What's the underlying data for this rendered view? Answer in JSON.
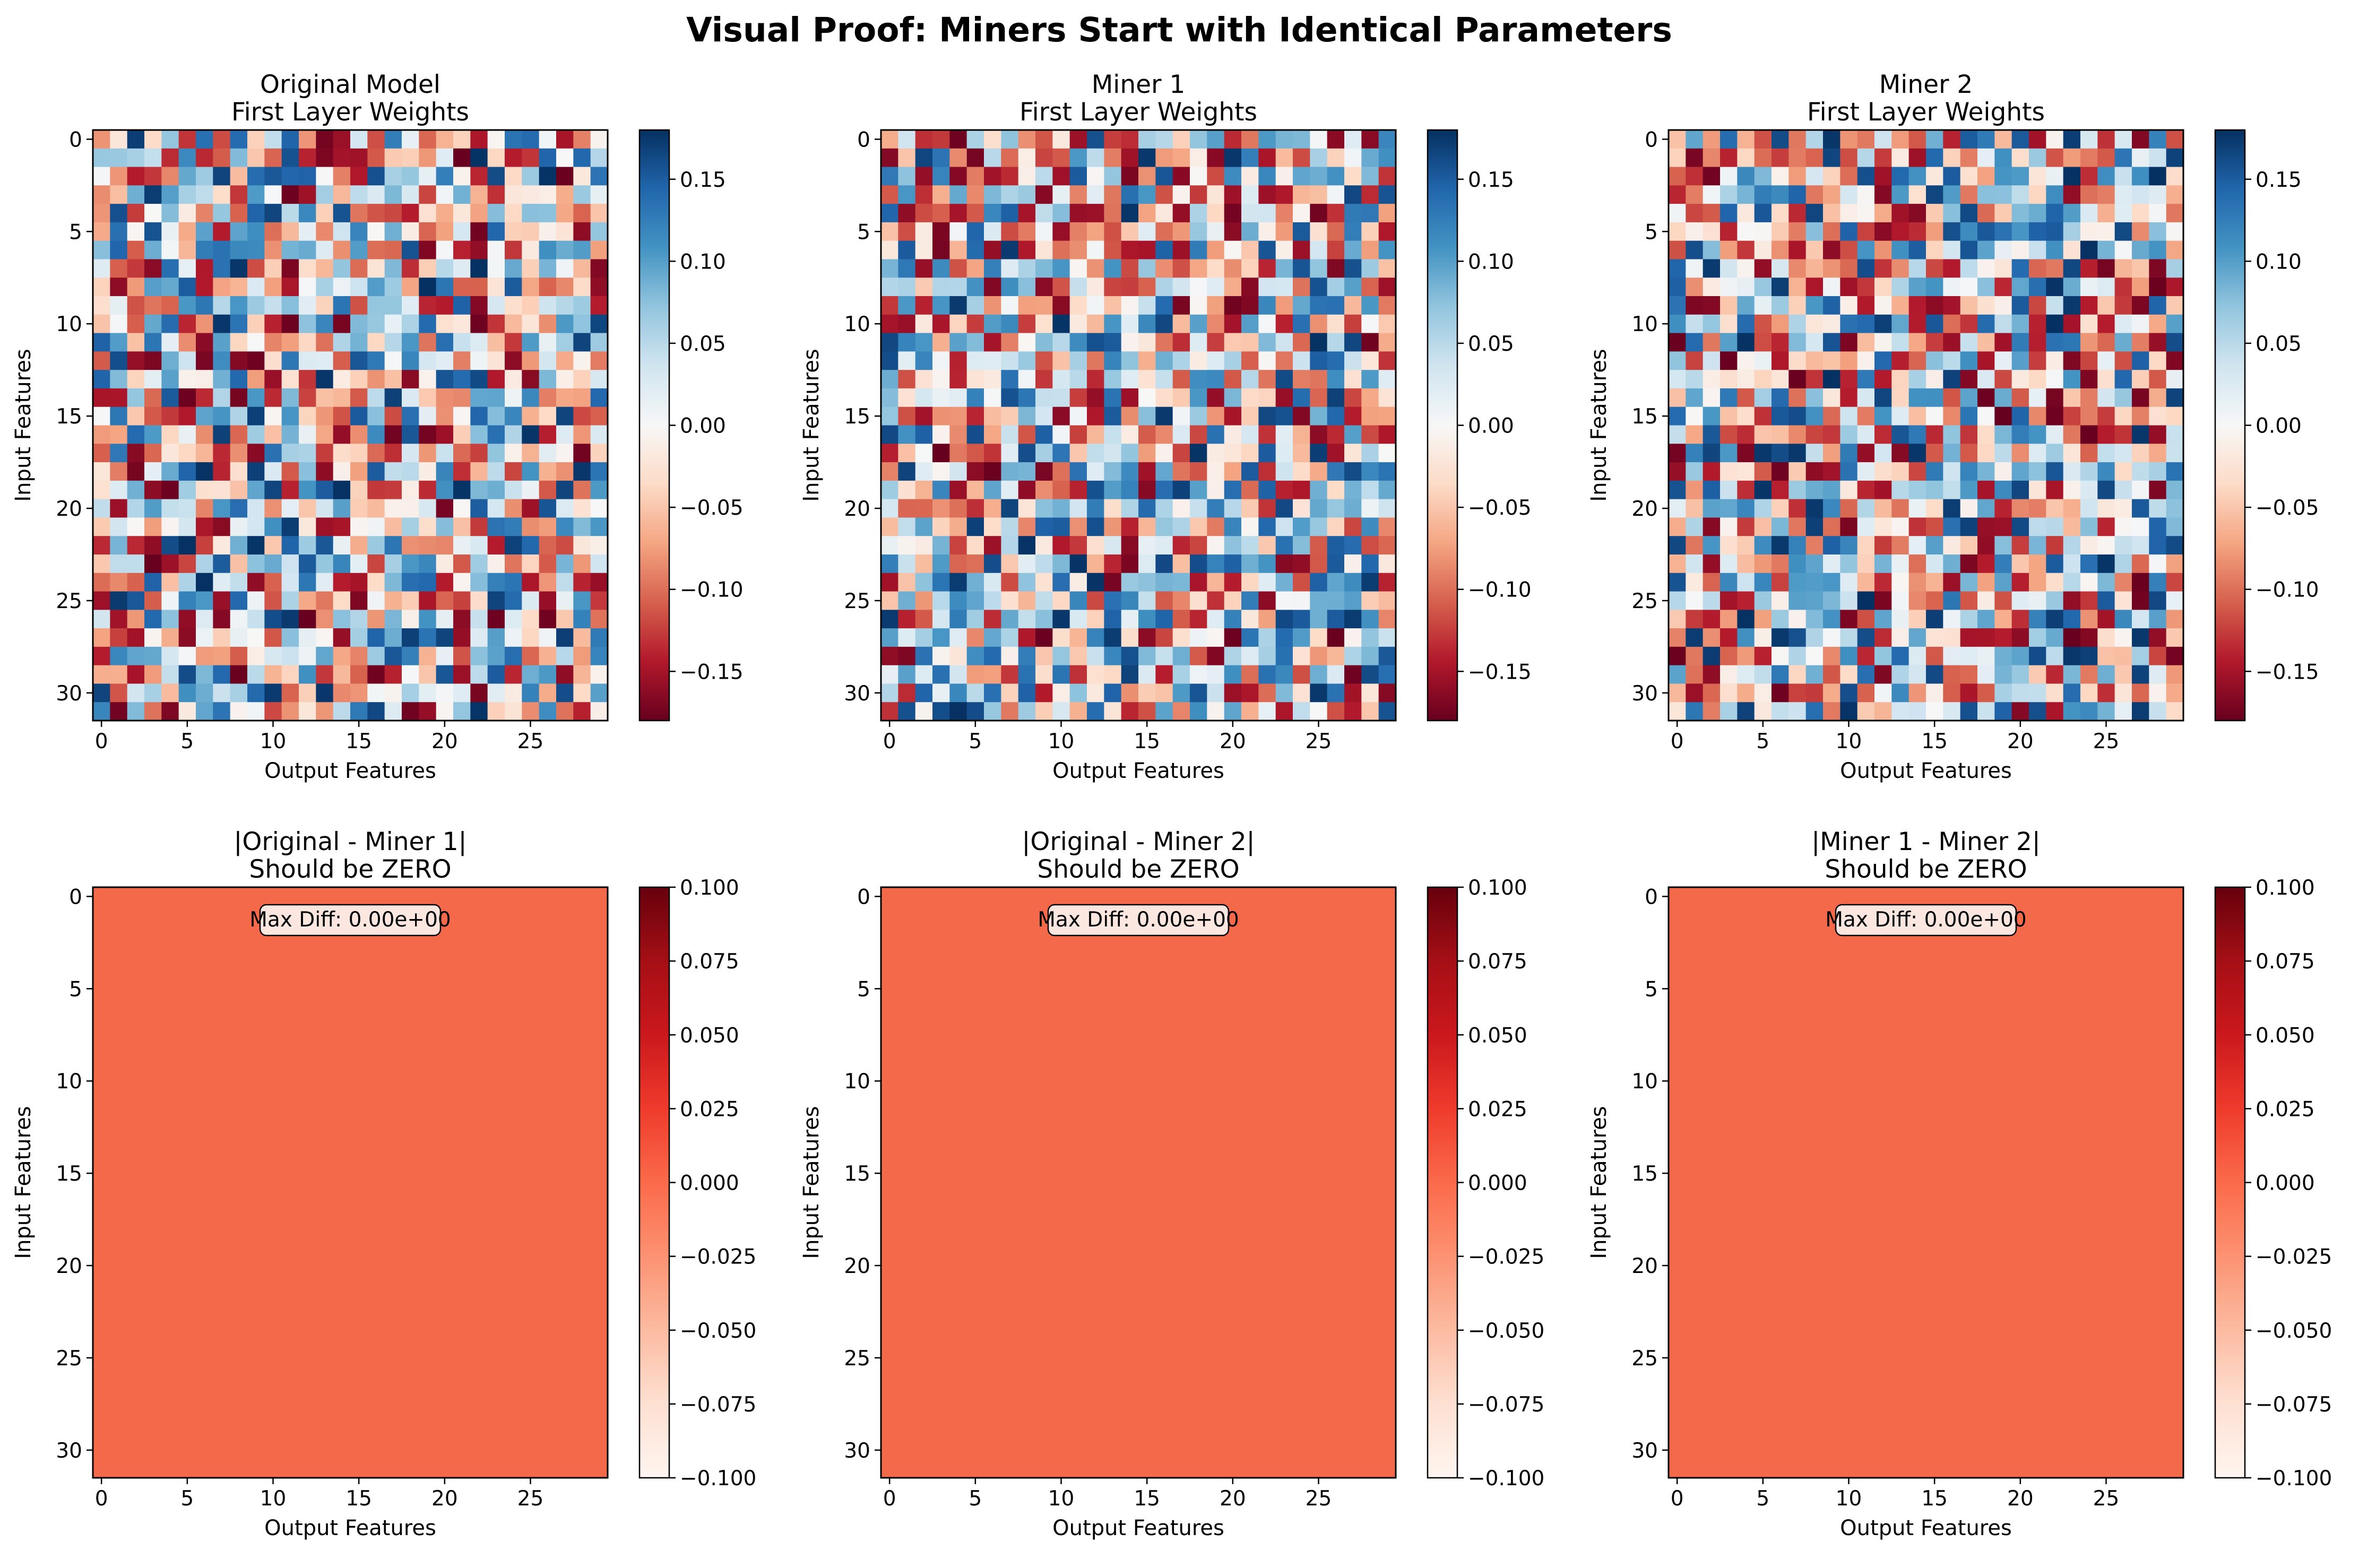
{
  "figure": {
    "title": "Visual Proof: Miners Start with Identical Parameters"
  },
  "colormaps": {
    "RdBu": [
      "#67001f",
      "#b2182b",
      "#d6604d",
      "#f4a582",
      "#fddbc7",
      "#f7f7f7",
      "#d1e5f0",
      "#92c5de",
      "#4393c3",
      "#2166ac",
      "#053061"
    ],
    "Reds": [
      "#fff5f0",
      "#fee0d2",
      "#fcbba1",
      "#fc9272",
      "#fb6a4a",
      "#ef3b2c",
      "#cb181d",
      "#a50f15",
      "#67000d"
    ]
  },
  "chart_data": [
    {
      "type": "heatmap",
      "title_line1": "Original Model",
      "title_line2": "First Layer Weights",
      "xlabel": "Output Features",
      "ylabel": "Input Features",
      "rows": 32,
      "cols": 30,
      "value_range": [
        -0.18,
        0.18
      ],
      "seed": 101,
      "colormap": "RdBu",
      "xticks": [
        0,
        5,
        10,
        15,
        20,
        25
      ],
      "yticks": [
        0,
        5,
        10,
        15,
        20,
        25,
        30
      ],
      "colorbar_ticks": [
        0.15,
        0.1,
        0.05,
        0.0,
        -0.05,
        -0.1,
        -0.15
      ],
      "colorbar_tick_labels": [
        "0.15",
        "0.10",
        "0.05",
        "0.00",
        "−0.05",
        "−0.10",
        "−0.15"
      ],
      "colorbar_range": [
        -0.18,
        0.18
      ]
    },
    {
      "type": "heatmap",
      "title_line1": "Miner 1",
      "title_line2": "First Layer Weights",
      "xlabel": "Output Features",
      "ylabel": "Input Features",
      "rows": 32,
      "cols": 30,
      "value_range": [
        -0.18,
        0.18
      ],
      "seed": 202,
      "colormap": "RdBu",
      "xticks": [
        0,
        5,
        10,
        15,
        20,
        25
      ],
      "yticks": [
        0,
        5,
        10,
        15,
        20,
        25,
        30
      ],
      "colorbar_ticks": [
        0.15,
        0.1,
        0.05,
        0.0,
        -0.05,
        -0.1,
        -0.15
      ],
      "colorbar_tick_labels": [
        "0.15",
        "0.10",
        "0.05",
        "0.00",
        "−0.05",
        "−0.10",
        "−0.15"
      ],
      "colorbar_range": [
        -0.18,
        0.18
      ]
    },
    {
      "type": "heatmap",
      "title_line1": "Miner 2",
      "title_line2": "First Layer Weights",
      "xlabel": "Output Features",
      "ylabel": "Input Features",
      "rows": 32,
      "cols": 30,
      "value_range": [
        -0.18,
        0.18
      ],
      "seed": 303,
      "colormap": "RdBu",
      "xticks": [
        0,
        5,
        10,
        15,
        20,
        25
      ],
      "yticks": [
        0,
        5,
        10,
        15,
        20,
        25,
        30
      ],
      "colorbar_ticks": [
        0.15,
        0.1,
        0.05,
        0.0,
        -0.05,
        -0.1,
        -0.15
      ],
      "colorbar_tick_labels": [
        "0.15",
        "0.10",
        "0.05",
        "0.00",
        "−0.05",
        "−0.10",
        "−0.15"
      ],
      "colorbar_range": [
        -0.18,
        0.18
      ]
    },
    {
      "type": "heatmap",
      "title_line1": "|Original - Miner 1|",
      "title_line2": "Should be ZERO",
      "xlabel": "Output Features",
      "ylabel": "Input Features",
      "rows": 32,
      "cols": 30,
      "constant_value": 0.0,
      "fill_color": "#f4694a",
      "colormap": "Reds",
      "annotation": "Max Diff: 0.00e+00",
      "xticks": [
        0,
        5,
        10,
        15,
        20,
        25
      ],
      "yticks": [
        0,
        5,
        10,
        15,
        20,
        25,
        30
      ],
      "colorbar_ticks": [
        0.1,
        0.075,
        0.05,
        0.025,
        0.0,
        -0.025,
        -0.05,
        -0.075,
        -0.1
      ],
      "colorbar_tick_labels": [
        "0.100",
        "0.075",
        "0.050",
        "0.025",
        "0.000",
        "−0.025",
        "−0.050",
        "−0.075",
        "−0.100"
      ],
      "colorbar_range": [
        -0.1,
        0.1
      ]
    },
    {
      "type": "heatmap",
      "title_line1": "|Original - Miner 2|",
      "title_line2": "Should be ZERO",
      "xlabel": "Output Features",
      "ylabel": "Input Features",
      "rows": 32,
      "cols": 30,
      "constant_value": 0.0,
      "fill_color": "#f4694a",
      "colormap": "Reds",
      "annotation": "Max Diff: 0.00e+00",
      "xticks": [
        0,
        5,
        10,
        15,
        20,
        25
      ],
      "yticks": [
        0,
        5,
        10,
        15,
        20,
        25,
        30
      ],
      "colorbar_ticks": [
        0.1,
        0.075,
        0.05,
        0.025,
        0.0,
        -0.025,
        -0.05,
        -0.075,
        -0.1
      ],
      "colorbar_tick_labels": [
        "0.100",
        "0.075",
        "0.050",
        "0.025",
        "0.000",
        "−0.025",
        "−0.050",
        "−0.075",
        "−0.100"
      ],
      "colorbar_range": [
        -0.1,
        0.1
      ]
    },
    {
      "type": "heatmap",
      "title_line1": "|Miner 1 - Miner 2|",
      "title_line2": "Should be ZERO",
      "xlabel": "Output Features",
      "ylabel": "Input Features",
      "rows": 32,
      "cols": 30,
      "constant_value": 0.0,
      "fill_color": "#f4694a",
      "colormap": "Reds",
      "annotation": "Max Diff: 0.00e+00",
      "xticks": [
        0,
        5,
        10,
        15,
        20,
        25
      ],
      "yticks": [
        0,
        5,
        10,
        15,
        20,
        25,
        30
      ],
      "colorbar_ticks": [
        0.1,
        0.075,
        0.05,
        0.025,
        0.0,
        -0.025,
        -0.05,
        -0.075,
        -0.1
      ],
      "colorbar_tick_labels": [
        "0.100",
        "0.075",
        "0.050",
        "0.025",
        "0.000",
        "−0.025",
        "−0.050",
        "−0.075",
        "−0.100"
      ],
      "colorbar_range": [
        -0.1,
        0.1
      ]
    }
  ]
}
